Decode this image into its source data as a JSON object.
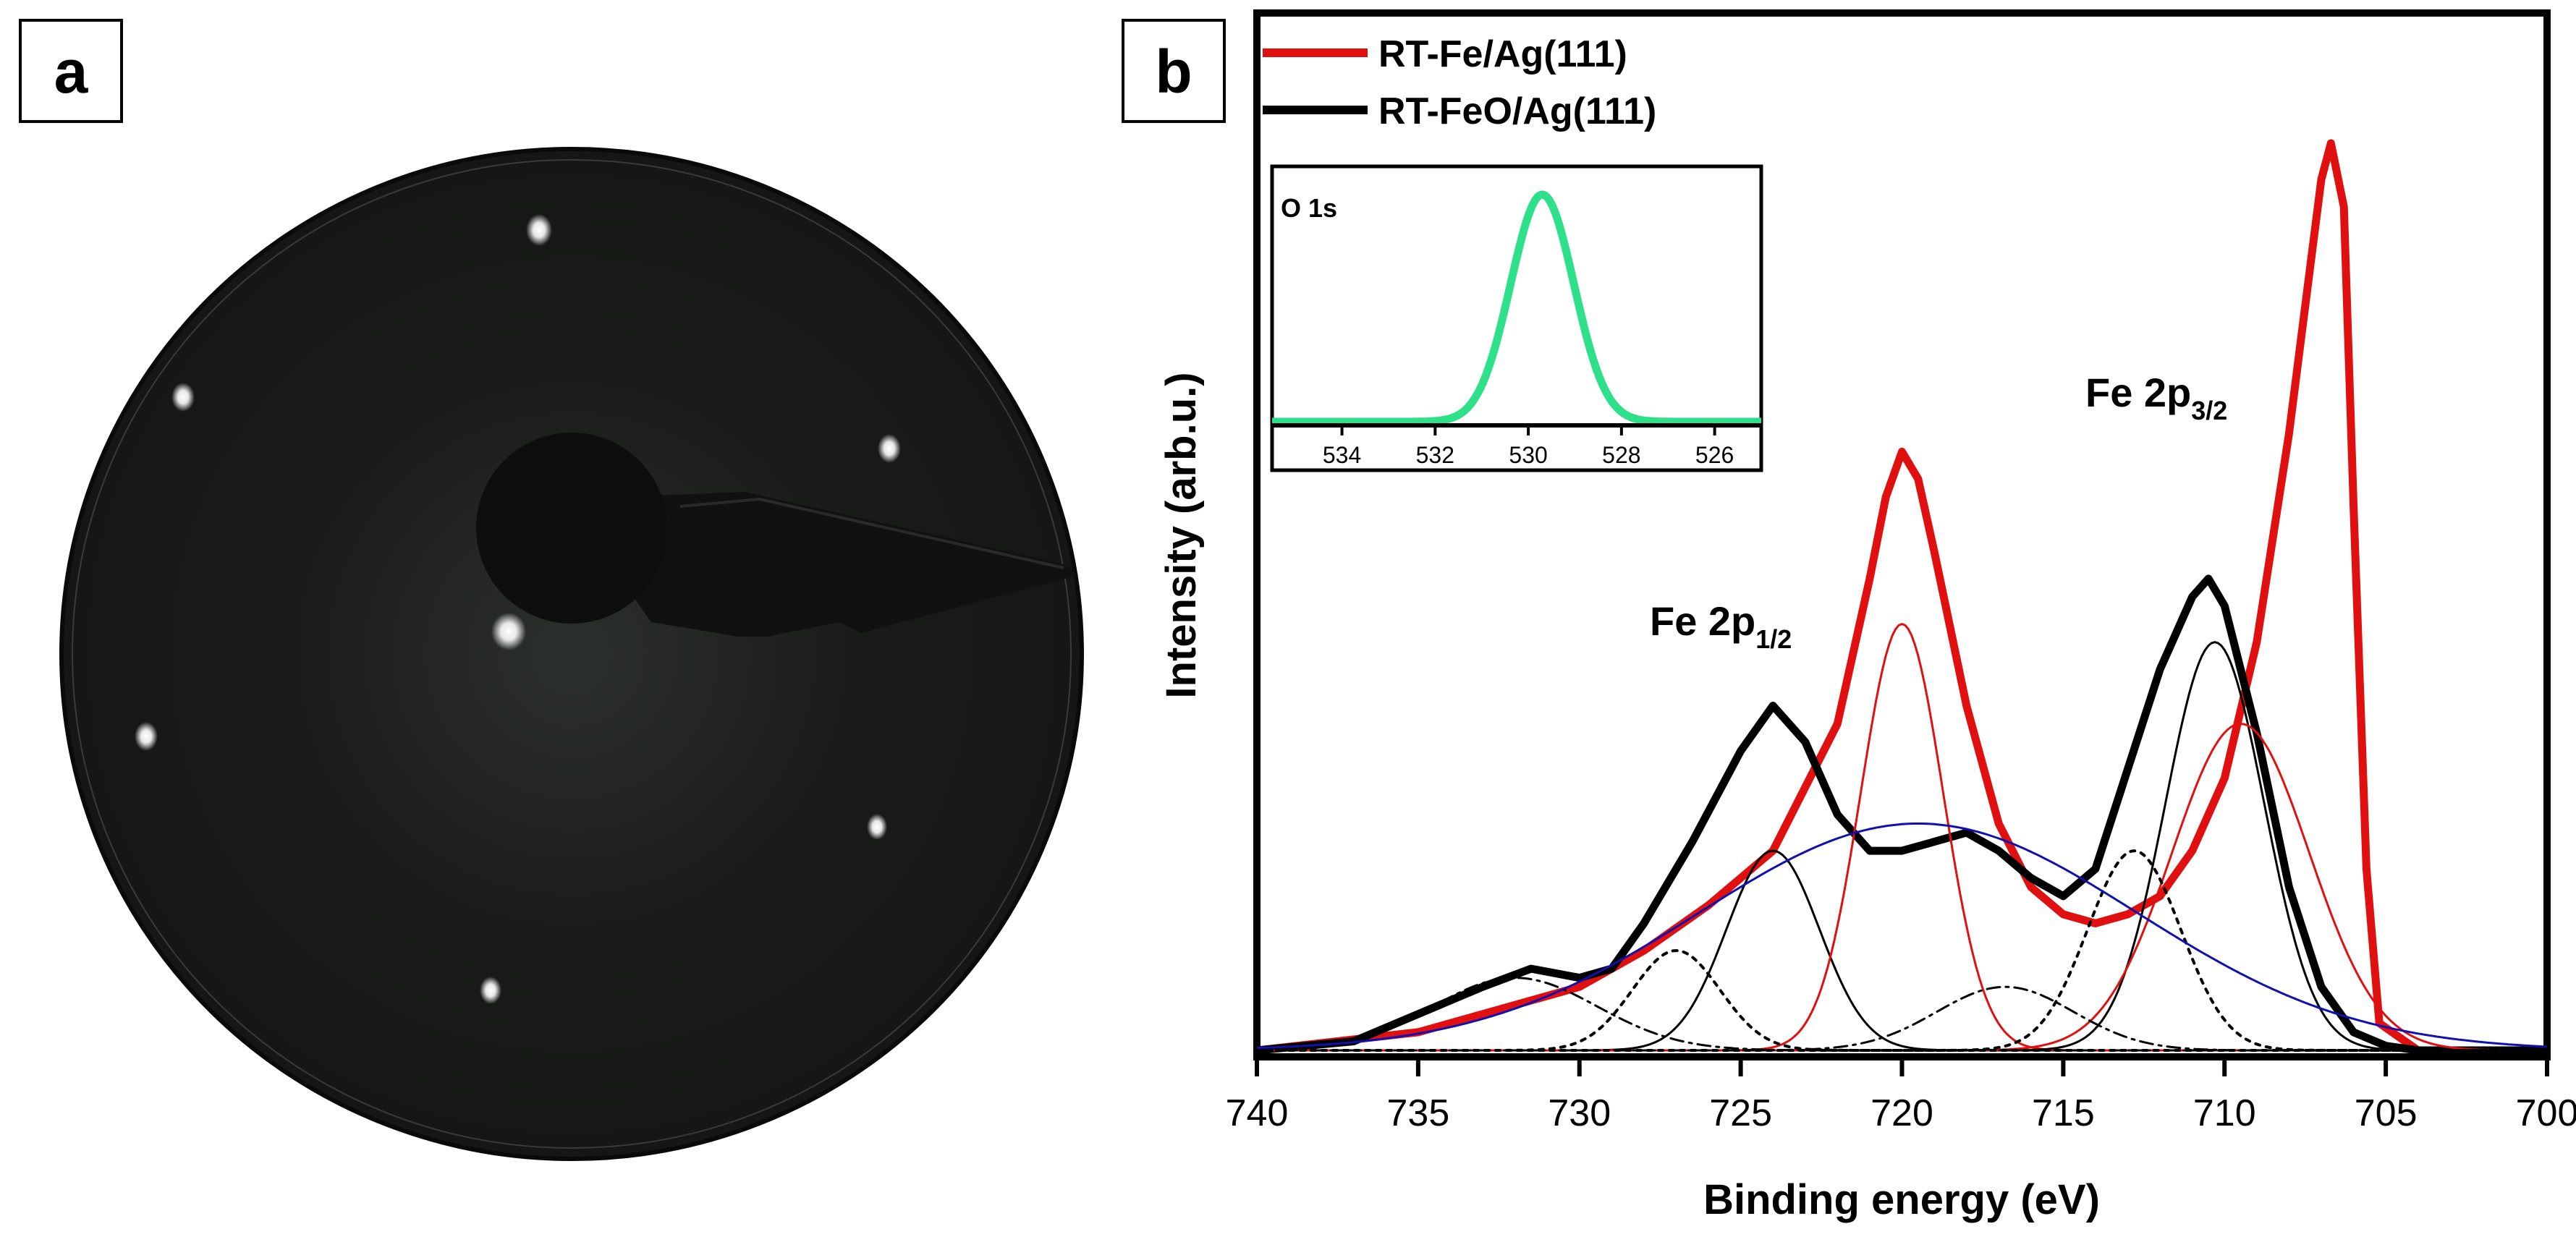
{
  "panel_a": {
    "label": "a",
    "image_desc_name": "leed-pattern"
  },
  "panel_b": {
    "label": "b"
  },
  "chart_data": [
    {
      "type": "line",
      "title": "",
      "xlabel": "Binding energy (eV)",
      "ylabel": "Intensity (arb.u.)",
      "xlim": [
        740,
        700
      ],
      "xticks": [
        740,
        735,
        730,
        725,
        720,
        715,
        710,
        705,
        700
      ],
      "legend": {
        "placement": "top-left",
        "entries": [
          {
            "name": "RT-Fe/Ag(111)",
            "color": "#e01010"
          },
          {
            "name": "RT-FeO/Ag(111)",
            "color": "#000000"
          }
        ]
      },
      "annotations": [
        {
          "text": "Fe 2p",
          "sub": "1/2",
          "x": 723.5,
          "y": 0.46
        },
        {
          "text": "Fe 2p",
          "sub": "3/2",
          "x": 710.5,
          "y": 0.73
        }
      ],
      "series": [
        {
          "name": "RT-Fe/Ag(111)",
          "color": "#e01010",
          "style": "thick",
          "x": [
            740,
            735,
            730,
            728,
            726,
            724,
            722,
            721,
            720.5,
            720,
            719.5,
            719,
            718,
            717,
            716,
            715,
            714,
            713,
            712,
            711,
            710,
            709,
            708,
            707.5,
            707,
            706.7,
            706.3,
            706,
            705.6,
            705.2,
            704,
            700
          ],
          "y": [
            0.0,
            0.02,
            0.07,
            0.11,
            0.16,
            0.22,
            0.36,
            0.52,
            0.61,
            0.66,
            0.63,
            0.55,
            0.38,
            0.25,
            0.18,
            0.15,
            0.14,
            0.15,
            0.17,
            0.22,
            0.3,
            0.45,
            0.68,
            0.82,
            0.96,
            1.0,
            0.93,
            0.6,
            0.2,
            0.03,
            0.0,
            0.0
          ]
        },
        {
          "name": "RT-FeO/Ag(111)",
          "color": "#000000",
          "style": "thick",
          "x": [
            740,
            737,
            735,
            733,
            731.5,
            730,
            729,
            728,
            726.5,
            725,
            724,
            723,
            722,
            721,
            720,
            719,
            718,
            717,
            716,
            715,
            714,
            713,
            712,
            711,
            710.5,
            710,
            709,
            708,
            707,
            706,
            705,
            704,
            700
          ],
          "y": [
            0.0,
            0.01,
            0.04,
            0.07,
            0.09,
            0.08,
            0.09,
            0.14,
            0.23,
            0.33,
            0.38,
            0.34,
            0.26,
            0.22,
            0.22,
            0.23,
            0.24,
            0.22,
            0.19,
            0.17,
            0.2,
            0.31,
            0.42,
            0.5,
            0.52,
            0.49,
            0.35,
            0.18,
            0.07,
            0.02,
            0.005,
            0.0,
            0.0
          ]
        },
        {
          "name": "fit-723-peak",
          "color": "#000000",
          "style": "thin",
          "gauss": {
            "center": 724.0,
            "height": 0.22,
            "fwhm": 3.4
          }
        },
        {
          "name": "fit-720-peak",
          "color": "#e01010",
          "style": "thin",
          "gauss": {
            "center": 720.0,
            "height": 0.47,
            "fwhm": 3.0
          }
        },
        {
          "name": "fit-710-peak",
          "color": "#000000",
          "style": "thin",
          "gauss": {
            "center": 710.3,
            "height": 0.45,
            "fwhm": 3.6
          }
        },
        {
          "name": "fit-710-red",
          "color": "#e01010",
          "style": "thin",
          "gauss": {
            "center": 709.5,
            "height": 0.36,
            "fwhm": 5.0
          }
        },
        {
          "name": "fit-sat-727",
          "color": "#000000",
          "style": "dotted",
          "gauss": {
            "center": 727.0,
            "height": 0.11,
            "fwhm": 3.2
          }
        },
        {
          "name": "fit-sat-713",
          "color": "#000000",
          "style": "dotted",
          "gauss": {
            "center": 712.8,
            "height": 0.22,
            "fwhm": 3.4
          }
        },
        {
          "name": "fit-sat-732",
          "color": "#000000",
          "style": "dashdot",
          "gauss": {
            "center": 732.0,
            "height": 0.08,
            "fwhm": 6.0
          }
        },
        {
          "name": "fit-sat-717",
          "color": "#000000",
          "style": "dashdot",
          "gauss": {
            "center": 716.8,
            "height": 0.07,
            "fwhm": 5.0
          }
        },
        {
          "name": "background",
          "color": "#1010b0",
          "style": "thin",
          "gauss": {
            "center": 719.5,
            "height": 0.25,
            "fwhm": 16.0
          }
        }
      ]
    },
    {
      "type": "line",
      "title": "O 1s",
      "xlabel": "",
      "ylabel": "",
      "xlim": [
        535.5,
        525
      ],
      "xticks": [
        534,
        532,
        530,
        528,
        526
      ],
      "series": [
        {
          "name": "O 1s data",
          "color": "#000000",
          "style": "dotted",
          "gauss": {
            "center": 529.7,
            "height": 1.0,
            "fwhm": 1.6
          }
        },
        {
          "name": "O 1s fit",
          "color": "#2ee08a",
          "style": "thick",
          "gauss": {
            "center": 529.7,
            "height": 1.0,
            "fwhm": 1.6
          }
        }
      ]
    }
  ]
}
